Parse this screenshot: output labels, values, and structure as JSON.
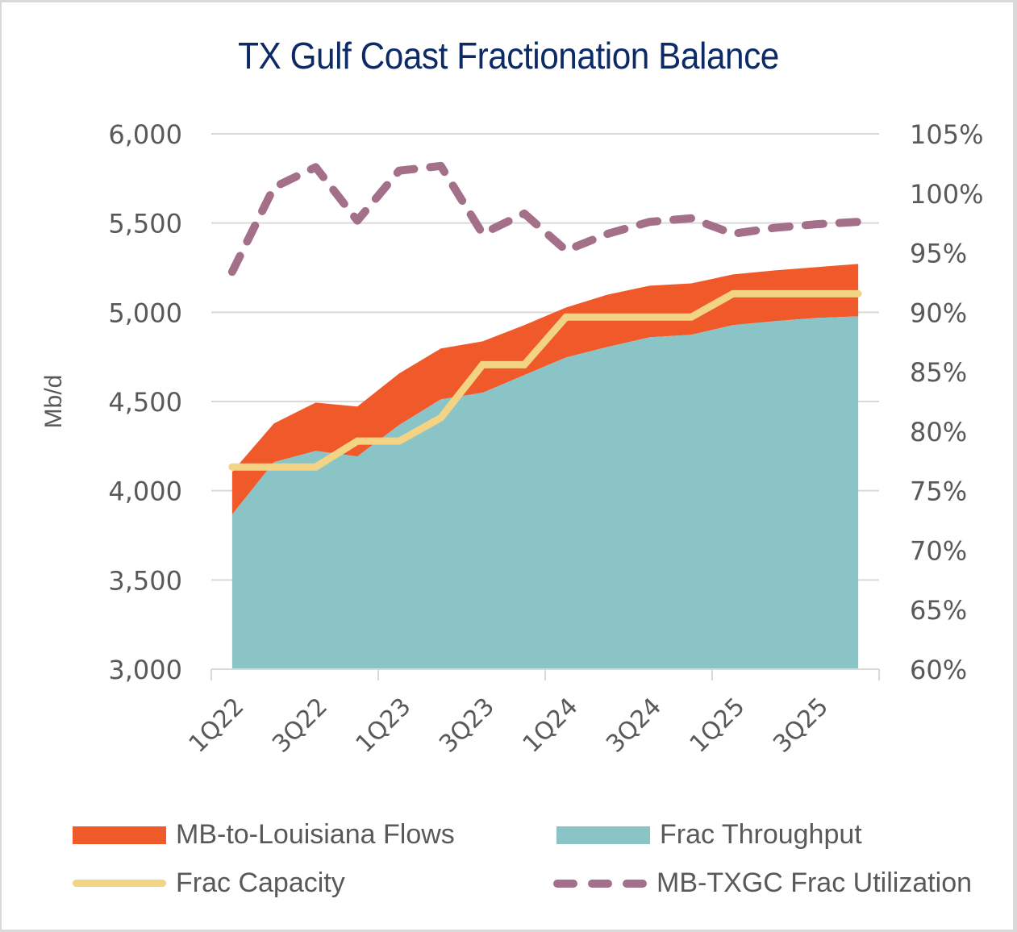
{
  "chart_data": {
    "type": "area",
    "title": "TX Gulf Coast Fractionation Balance",
    "ylabel": "Mb/d",
    "y2label": "",
    "xlabel": "",
    "ylim": [
      3000,
      6000
    ],
    "y2lim": [
      0.6,
      1.05
    ],
    "yticks": [
      "3,000",
      "3,500",
      "4,000",
      "4,500",
      "5,000",
      "5,500",
      "6,000"
    ],
    "y2ticks": [
      "60%",
      "65%",
      "70%",
      "75%",
      "80%",
      "85%",
      "90%",
      "95%",
      "100%",
      "105%"
    ],
    "grid": true,
    "categories": [
      "1Q22",
      "2Q22",
      "3Q22",
      "4Q22",
      "1Q23",
      "2Q23",
      "3Q23",
      "4Q23",
      "1Q24",
      "2Q24",
      "3Q24",
      "4Q24",
      "1Q25",
      "2Q25",
      "3Q25",
      "4Q25"
    ],
    "xtick_labels": [
      "1Q22",
      "3Q22",
      "1Q23",
      "3Q23",
      "1Q24",
      "3Q24",
      "1Q25",
      "3Q25"
    ],
    "series": [
      {
        "name": "Frac Throughput",
        "type": "stacked-area",
        "axis": "left",
        "color": "#8bc4c6",
        "values": [
          3867,
          4160,
          4223,
          4192,
          4368,
          4512,
          4549,
          4648,
          4747,
          4806,
          4860,
          4874,
          4928,
          4950,
          4968,
          4977
        ]
      },
      {
        "name": "MB-to-Louisiana Flows",
        "type": "stacked-area",
        "axis": "left",
        "color": "#f05a2b",
        "values": [
          239,
          217,
          271,
          280,
          289,
          285,
          288,
          280,
          280,
          293,
          289,
          288,
          284,
          285,
          285,
          294
        ]
      },
      {
        "name": "Frac Capacity",
        "type": "line",
        "axis": "left",
        "color": "#f3d384",
        "values": [
          4133,
          4133,
          4133,
          4278,
          4278,
          4409,
          4706,
          4706,
          4973,
          4973,
          4973,
          4973,
          5104,
          5104,
          5104,
          5104
        ]
      },
      {
        "name": "MB-TXGC Frac Utilization",
        "type": "dashed-line",
        "axis": "right",
        "color": "#a46f89",
        "values": [
          0.934,
          1.005,
          1.022,
          0.977,
          1.019,
          1.023,
          0.966,
          0.983,
          0.952,
          0.966,
          0.976,
          0.979,
          0.966,
          0.971,
          0.974,
          0.976
        ]
      }
    ],
    "legend": {
      "position": "bottom",
      "items": [
        {
          "label": "MB-to-Louisiana Flows",
          "kind": "area",
          "color": "#f05a2b"
        },
        {
          "label": "Frac Throughput",
          "kind": "area",
          "color": "#8bc4c6"
        },
        {
          "label": "Frac Capacity",
          "kind": "line",
          "color": "#f3d384"
        },
        {
          "label": "MB-TXGC Frac Utilization",
          "kind": "dash",
          "color": "#a46f89"
        }
      ]
    }
  }
}
